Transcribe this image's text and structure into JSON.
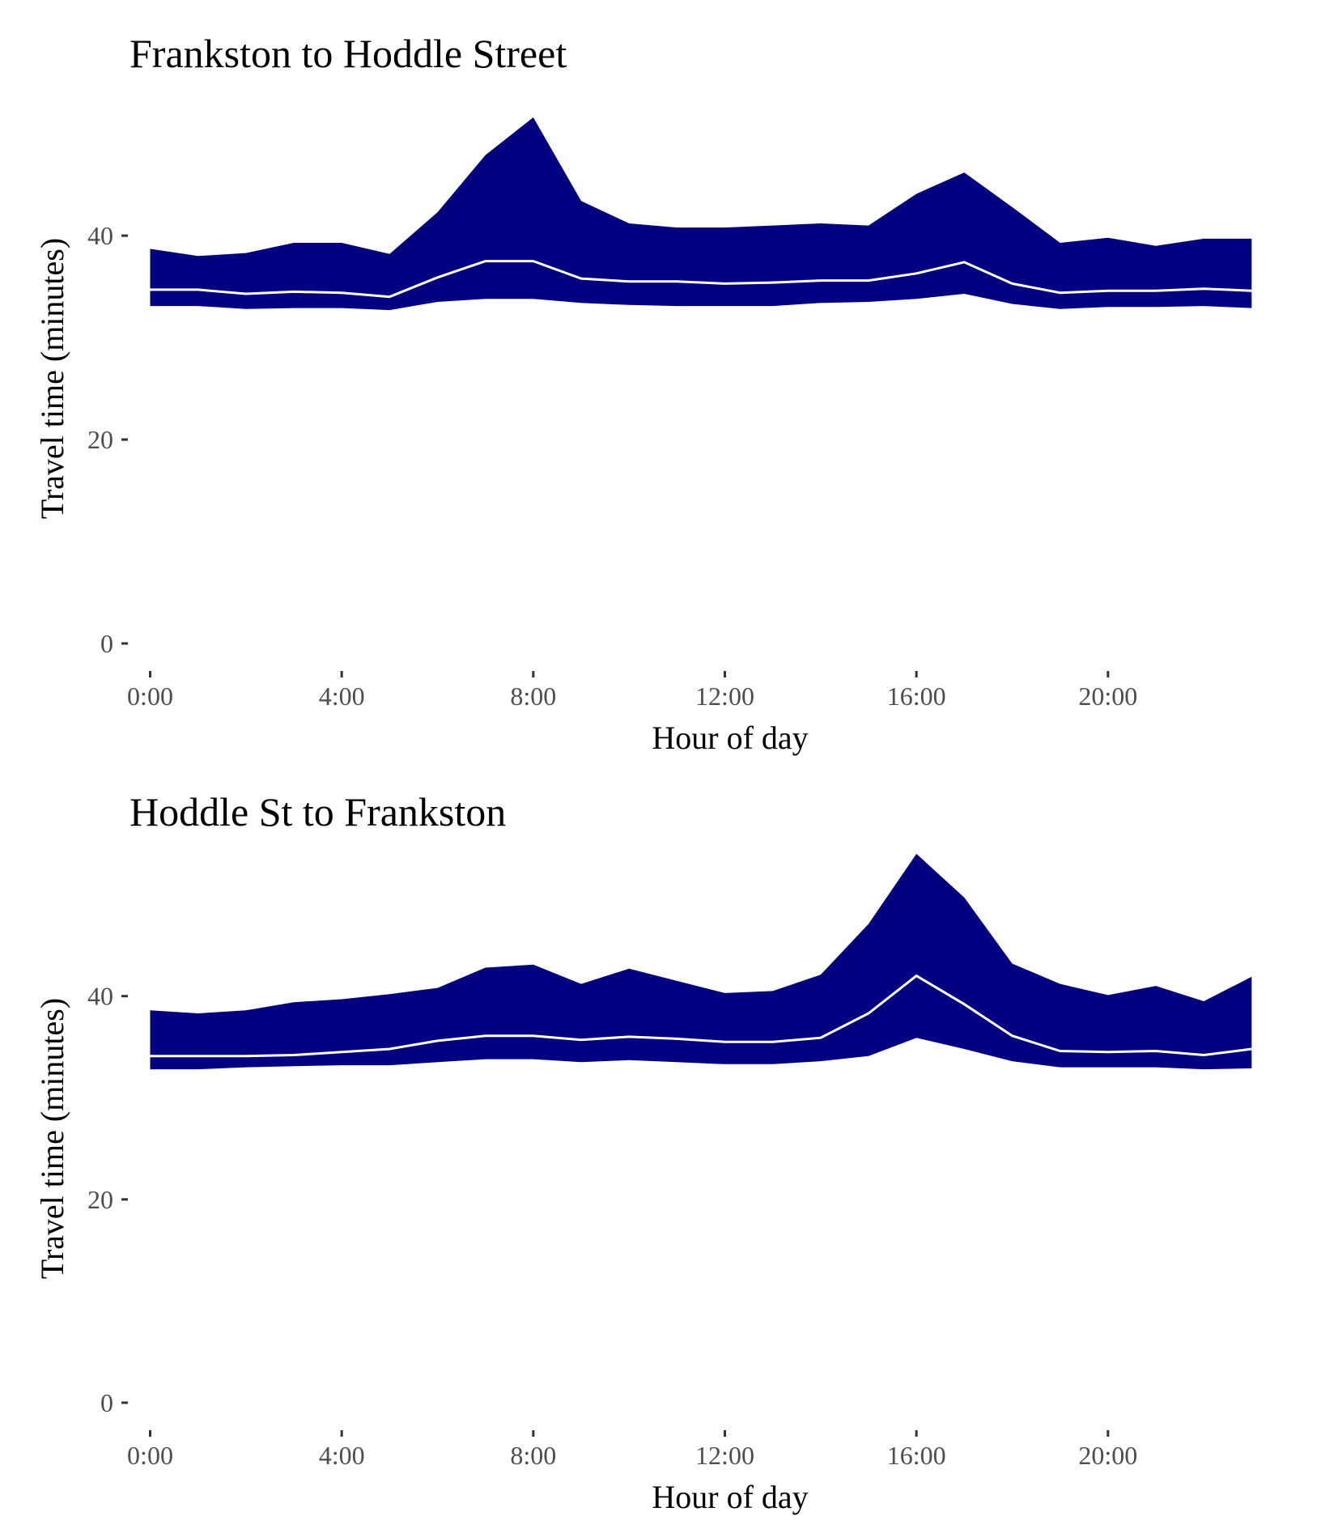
{
  "colors": {
    "band": "#000080",
    "median_line": "#ffffff",
    "tick_text": "#4d4d4d",
    "tick_mark": "#333333"
  },
  "chart_data": [
    {
      "type": "area",
      "title": "Frankston to Hoddle Street",
      "xlabel": "Hour of day",
      "ylabel": "Travel time (minutes)",
      "x_ticks": [
        "0:00",
        "4:00",
        "8:00",
        "12:00",
        "16:00",
        "20:00"
      ],
      "x_tick_hours": [
        0,
        4,
        8,
        12,
        16,
        20
      ],
      "y_ticks": [
        "0",
        "20",
        "40"
      ],
      "y_tick_values": [
        0,
        20,
        40
      ],
      "xlim": [
        -0.6,
        23.4
      ],
      "ylim": [
        0,
        52
      ],
      "grid": false,
      "x": [
        0,
        1,
        2,
        3,
        4,
        5,
        6,
        7,
        8,
        9,
        10,
        11,
        12,
        13,
        14,
        15,
        16,
        17,
        18,
        19,
        20,
        21,
        22,
        23
      ],
      "upper": [
        38.7,
        38.0,
        38.3,
        39.3,
        39.3,
        38.2,
        42.3,
        47.9,
        51.6,
        43.4,
        41.2,
        40.8,
        40.8,
        41.0,
        41.2,
        41.0,
        44.1,
        46.2,
        42.8,
        39.3,
        39.8,
        39.0,
        39.7,
        39.7
      ],
      "median": [
        34.7,
        34.7,
        34.3,
        34.5,
        34.4,
        34.0,
        35.9,
        37.5,
        37.5,
        35.8,
        35.5,
        35.5,
        35.3,
        35.4,
        35.6,
        35.6,
        36.3,
        37.4,
        35.3,
        34.4,
        34.6,
        34.6,
        34.8,
        34.6
      ],
      "lower": [
        33.1,
        33.1,
        32.8,
        32.9,
        32.9,
        32.7,
        33.5,
        33.8,
        33.8,
        33.4,
        33.2,
        33.1,
        33.1,
        33.1,
        33.4,
        33.5,
        33.8,
        34.3,
        33.3,
        32.8,
        33.0,
        33.0,
        33.1,
        32.9
      ]
    },
    {
      "type": "area",
      "title": "Hoddle St to Frankston",
      "xlabel": "Hour of day",
      "ylabel": "Travel time (minutes)",
      "x_ticks": [
        "0:00",
        "4:00",
        "8:00",
        "12:00",
        "16:00",
        "20:00"
      ],
      "x_tick_hours": [
        0,
        4,
        8,
        12,
        16,
        20
      ],
      "y_ticks": [
        "0",
        "20",
        "40"
      ],
      "y_tick_values": [
        0,
        20,
        40
      ],
      "xlim": [
        -0.6,
        23.4
      ],
      "ylim": [
        0,
        52
      ],
      "grid": false,
      "x": [
        0,
        1,
        2,
        3,
        4,
        5,
        6,
        7,
        8,
        9,
        10,
        11,
        12,
        13,
        14,
        15,
        16,
        17,
        18,
        19,
        20,
        21,
        22,
        23
      ],
      "upper": [
        38.6,
        38.3,
        38.6,
        39.4,
        39.7,
        40.2,
        40.8,
        42.8,
        43.1,
        41.2,
        42.7,
        41.5,
        40.3,
        40.5,
        42.1,
        47.1,
        54.0,
        49.7,
        43.2,
        41.2,
        40.1,
        41.0,
        39.5,
        41.9
      ],
      "median": [
        34.1,
        34.1,
        34.1,
        34.2,
        34.5,
        34.8,
        35.6,
        36.1,
        36.1,
        35.7,
        36.0,
        35.8,
        35.5,
        35.5,
        35.9,
        38.3,
        42.0,
        39.2,
        36.1,
        34.6,
        34.5,
        34.6,
        34.2,
        34.8
      ],
      "lower": [
        32.8,
        32.8,
        33.0,
        33.1,
        33.2,
        33.2,
        33.5,
        33.8,
        33.8,
        33.5,
        33.7,
        33.5,
        33.3,
        33.3,
        33.6,
        34.1,
        35.9,
        34.8,
        33.6,
        33.0,
        33.0,
        33.0,
        32.8,
        32.9
      ]
    }
  ]
}
